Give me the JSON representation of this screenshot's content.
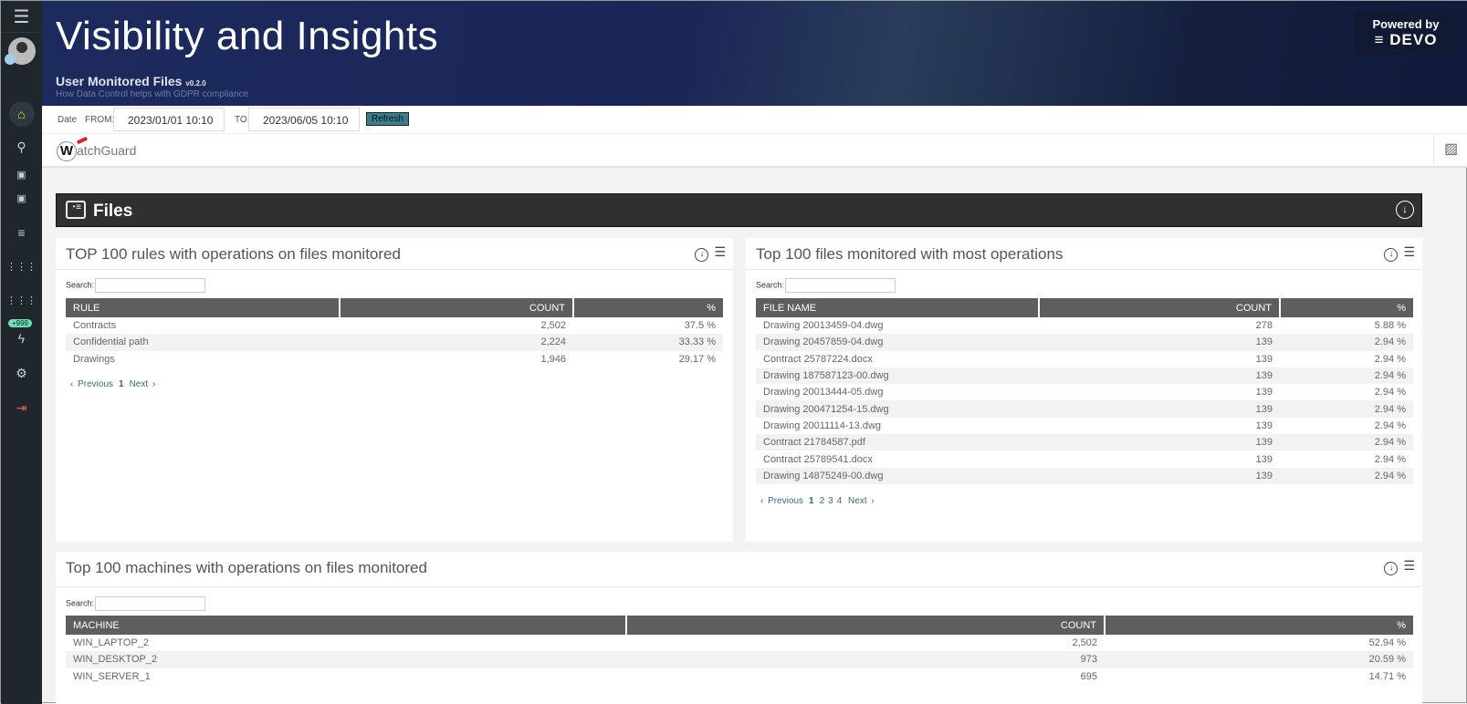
{
  "header": {
    "title": "Visibility and Insights",
    "subtitle": "User Monitored Files",
    "version": "v0.2.0",
    "description": "How Data Control helps with GDPR compliance",
    "powered_by": "Powered by",
    "brand": "DEVO"
  },
  "sidebar": {
    "badge": "+999",
    "items": [
      "menu-icon",
      "avatar",
      "home-icon",
      "search-icon",
      "dashboards-icon",
      "dashboards-alt-icon",
      "settings-sliders-icon",
      "apps-icon",
      "apps-alt-icon",
      "alerts-icon",
      "gear-icon",
      "logout-icon"
    ]
  },
  "datebar": {
    "label": "Date",
    "from_label": "FROM:",
    "from_value": "2023/01/01 10:10",
    "to_label": "TO:",
    "to_value": "2023/06/05 10:10",
    "refresh": "Refresh"
  },
  "logo": {
    "text": "atchGuard",
    "letter": "W"
  },
  "section": {
    "title": "Files"
  },
  "rules_panel": {
    "title": "TOP 100 rules with operations on files monitored",
    "search_label": "Search:",
    "columns": [
      "RULE",
      "COUNT",
      "%"
    ],
    "rows": [
      [
        "Contracts",
        "2,502",
        "37.5 %"
      ],
      [
        "Confidential path",
        "2,224",
        "33.33 %"
      ],
      [
        "Drawings",
        "1,946",
        "29.17 %"
      ]
    ],
    "pager": {
      "prev": "Previous",
      "pages": [
        "1"
      ],
      "next": "Next"
    }
  },
  "files_panel": {
    "title": "Top 100 files monitored with most operations",
    "search_label": "Search:",
    "columns": [
      "FILE NAME",
      "COUNT",
      "%"
    ],
    "rows": [
      [
        "Drawing 20013459-04.dwg",
        "278",
        "5.88 %"
      ],
      [
        "Drawing 20457859-04.dwg",
        "139",
        "2.94 %"
      ],
      [
        "Contract 25787224.docx",
        "139",
        "2.94 %"
      ],
      [
        "Drawing 187587123-00.dwg",
        "139",
        "2.94 %"
      ],
      [
        "Drawing 20013444-05.dwg",
        "139",
        "2.94 %"
      ],
      [
        "Drawing 200471254-15.dwg",
        "139",
        "2.94 %"
      ],
      [
        "Drawing 20011114-13.dwg",
        "139",
        "2.94 %"
      ],
      [
        "Contract 21784587.pdf",
        "139",
        "2.94 %"
      ],
      [
        "Contract 25789541.docx",
        "139",
        "2.94 %"
      ],
      [
        "Drawing 14875249-00.dwg",
        "139",
        "2.94 %"
      ]
    ],
    "pager": {
      "prev": "Previous",
      "pages": [
        "1",
        "2",
        "3",
        "4"
      ],
      "next": "Next"
    }
  },
  "machines_panel": {
    "title": "Top 100 machines with operations on files monitored",
    "search_label": "Search:",
    "columns": [
      "MACHINE",
      "COUNT",
      "%"
    ],
    "rows": [
      [
        "WIN_LAPTOP_2",
        "2,502",
        "52.94 %"
      ],
      [
        "WIN_DESKTOP_2",
        "973",
        "20.59 %"
      ],
      [
        "WIN_SERVER_1",
        "695",
        "14.71 %"
      ]
    ]
  }
}
